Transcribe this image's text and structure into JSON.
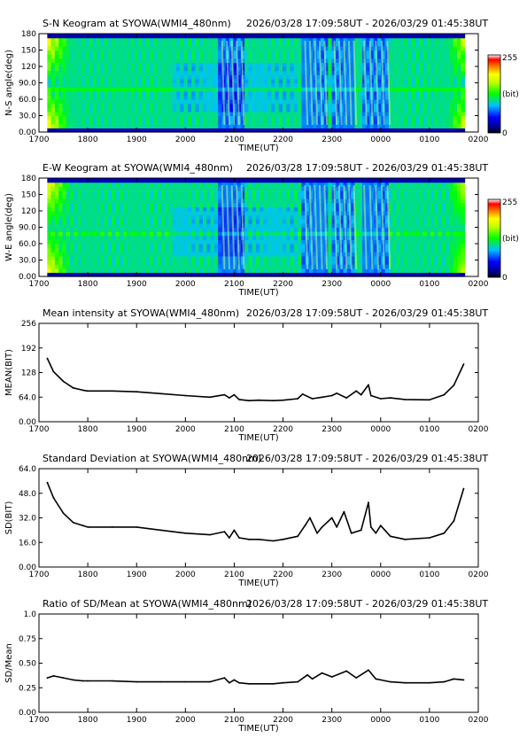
{
  "x_ticks": [
    "1700",
    "1800",
    "1900",
    "2000",
    "2100",
    "2200",
    "2300",
    "0000",
    "0100",
    "0200"
  ],
  "x_label": "TIME(UT)",
  "colorbar": {
    "max_label": "255",
    "unit_label": "(bit)",
    "min_label": "0"
  },
  "chart_data": [
    {
      "type": "heatmap",
      "title": "S-N Keogram at SYOWA(WMI4_480nm)",
      "subtitle": "2026/03/28 17:09:58UT - 2026/03/29 01:45:38UT",
      "xlabel": "TIME(UT)",
      "ylabel": "N-S angle(deg)",
      "ylim": [
        0,
        180
      ],
      "y_ticks": [
        "0.00",
        "30.0",
        "60.0",
        "90.0",
        "120",
        "150",
        "180"
      ],
      "colorbar_range": [
        0,
        255
      ],
      "bright_bands_ut": [
        [
          20.7,
          21.2
        ],
        [
          22.4,
          22.9
        ],
        [
          23.0,
          23.5
        ],
        [
          23.6,
          24.2
        ]
      ]
    },
    {
      "type": "heatmap",
      "title": "E-W Keogram at SYOWA(WMI4_480nm)",
      "subtitle": "2026/03/28 17:09:58UT - 2026/03/29 01:45:38UT",
      "xlabel": "TIME(UT)",
      "ylabel": "W-E angle(deg)",
      "ylim": [
        0,
        180
      ],
      "y_ticks": [
        "0.00",
        "30.0",
        "60.0",
        "90.0",
        "120",
        "150",
        "180"
      ],
      "colorbar_range": [
        0,
        255
      ],
      "bright_bands_ut": [
        [
          20.7,
          21.2
        ],
        [
          22.4,
          22.9
        ],
        [
          23.0,
          23.5
        ],
        [
          23.6,
          24.2
        ]
      ]
    },
    {
      "type": "line",
      "title": "Mean intensity at SYOWA(WMI4_480nm)",
      "subtitle": "2026/03/28 17:09:58UT - 2026/03/29 01:45:38UT",
      "xlabel": "TIME(UT)",
      "ylabel": "MEAN(BIT)",
      "ylim": [
        0,
        256
      ],
      "y_ticks": [
        "0.00",
        "64.0",
        "128",
        "192",
        "256"
      ],
      "x": [
        17.17,
        17.3,
        17.5,
        17.7,
        17.9,
        18.0,
        18.5,
        19.0,
        19.5,
        20.0,
        20.5,
        20.8,
        20.9,
        21.0,
        21.1,
        21.3,
        21.5,
        21.8,
        22.0,
        22.3,
        22.4,
        22.6,
        22.8,
        23.0,
        23.1,
        23.3,
        23.5,
        23.6,
        23.75,
        23.8,
        24.0,
        24.2,
        24.5,
        25.0,
        25.3,
        25.5,
        25.7
      ],
      "series": [
        {
          "values": [
            165,
            130,
            105,
            88,
            82,
            80,
            80,
            78,
            73,
            68,
            64,
            70,
            62,
            70,
            58,
            55,
            56,
            55,
            56,
            60,
            72,
            60,
            64,
            68,
            74,
            62,
            80,
            70,
            96,
            68,
            60,
            62,
            58,
            57,
            70,
            95,
            150
          ]
        }
      ]
    },
    {
      "type": "line",
      "title": "Standard Deviation at SYOWA(WMI4_480nm)",
      "subtitle": "2026/03/28 17:09:58UT - 2026/03/29 01:45:38UT",
      "xlabel": "TIME(UT)",
      "ylabel": "SD(BIT)",
      "ylim": [
        0,
        64
      ],
      "y_ticks": [
        "0.00",
        "16.0",
        "32.0",
        "48.0",
        "64.0"
      ],
      "x": [
        17.17,
        17.3,
        17.5,
        17.7,
        17.9,
        18.0,
        18.5,
        19.0,
        19.5,
        20.0,
        20.5,
        20.8,
        20.9,
        21.0,
        21.1,
        21.3,
        21.5,
        21.8,
        22.0,
        22.3,
        22.45,
        22.55,
        22.7,
        22.8,
        23.0,
        23.1,
        23.25,
        23.4,
        23.6,
        23.75,
        23.8,
        23.9,
        24.0,
        24.2,
        24.5,
        25.0,
        25.3,
        25.5,
        25.7
      ],
      "series": [
        {
          "values": [
            55,
            45,
            35,
            29,
            27,
            26,
            26,
            26,
            24,
            22,
            21,
            23,
            19,
            24,
            19,
            18,
            18,
            17,
            18,
            20,
            27,
            32,
            22,
            26,
            32,
            26,
            36,
            22,
            24,
            42,
            26,
            22,
            27,
            20,
            18,
            19,
            22,
            30,
            51
          ]
        }
      ]
    },
    {
      "type": "line",
      "title": "Ratio of SD/Mean at SYOWA(WMI4_480nm)",
      "subtitle": "2026/03/28 17:09:58UT - 2026/03/29 01:45:38UT",
      "xlabel": "TIME(UT)",
      "ylabel": "SD/Mean",
      "ylim": [
        0,
        1.0
      ],
      "y_ticks": [
        "0.00",
        "0.25",
        "0.50",
        "0.75",
        "1.0"
      ],
      "x": [
        17.17,
        17.3,
        17.5,
        17.7,
        17.9,
        18.0,
        18.5,
        19.0,
        19.5,
        20.0,
        20.5,
        20.8,
        20.9,
        21.0,
        21.1,
        21.3,
        21.5,
        21.8,
        22.0,
        22.3,
        22.5,
        22.6,
        22.8,
        23.0,
        23.3,
        23.5,
        23.75,
        23.9,
        24.0,
        24.2,
        24.5,
        25.0,
        25.3,
        25.5,
        25.7
      ],
      "series": [
        {
          "values": [
            0.35,
            0.37,
            0.35,
            0.33,
            0.32,
            0.32,
            0.32,
            0.31,
            0.31,
            0.31,
            0.31,
            0.35,
            0.3,
            0.33,
            0.3,
            0.29,
            0.29,
            0.29,
            0.3,
            0.31,
            0.38,
            0.34,
            0.4,
            0.36,
            0.42,
            0.35,
            0.43,
            0.34,
            0.33,
            0.31,
            0.3,
            0.3,
            0.31,
            0.34,
            0.33
          ]
        }
      ]
    }
  ]
}
